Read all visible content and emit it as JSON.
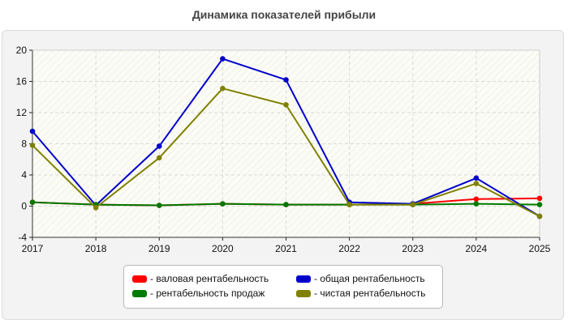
{
  "chart_data": {
    "type": "line",
    "title": "Динамика показателей прибыли",
    "xlabel": "",
    "ylabel": "",
    "categories": [
      "2017",
      "2018",
      "2019",
      "2020",
      "2021",
      "2022",
      "2023",
      "2024",
      "2025"
    ],
    "ylim": [
      -4,
      20
    ],
    "yticks": [
      -4,
      0,
      4,
      8,
      12,
      16,
      20
    ],
    "grid": true,
    "legend_position": "bottom",
    "series": [
      {
        "name": "- валовая рентабельность",
        "color": "#ff0000",
        "values": [
          0.5,
          0.2,
          0.1,
          0.3,
          0.2,
          0.2,
          0.3,
          0.9,
          1.0
        ]
      },
      {
        "name": "- общая рентабельность",
        "color": "#0000cc",
        "values": [
          9.6,
          0.1,
          7.7,
          18.9,
          16.2,
          0.5,
          0.3,
          3.6,
          -1.3
        ]
      },
      {
        "name": "- рентабельность продаж",
        "color": "#007a00",
        "values": [
          0.5,
          0.2,
          0.1,
          0.3,
          0.2,
          0.2,
          0.2,
          0.3,
          0.2
        ]
      },
      {
        "name": "- чистая рентабельность",
        "color": "#808000",
        "values": [
          7.8,
          -0.2,
          6.2,
          15.1,
          13.0,
          0.2,
          0.2,
          2.9,
          -1.3
        ]
      }
    ]
  }
}
